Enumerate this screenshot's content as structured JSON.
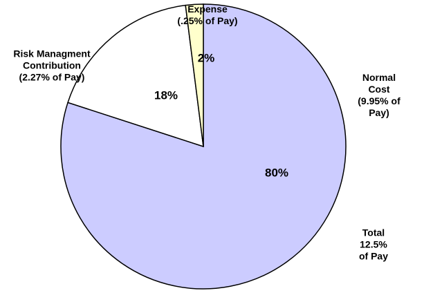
{
  "chart_data": {
    "type": "pie",
    "categories": [
      "Normal Cost\n(9.95% of Pay)",
      "Risk Managment\nContribution\n(2.27% of Pay)",
      "Expense\n(.25% of Pay)"
    ],
    "values": [
      80,
      18,
      2
    ],
    "value_labels": [
      "80%",
      "18%",
      "2%"
    ],
    "colors": [
      "#ccccff",
      "#ffffff",
      "#ffffcc"
    ],
    "annotation": "Total 12.5%\nof Pay"
  }
}
